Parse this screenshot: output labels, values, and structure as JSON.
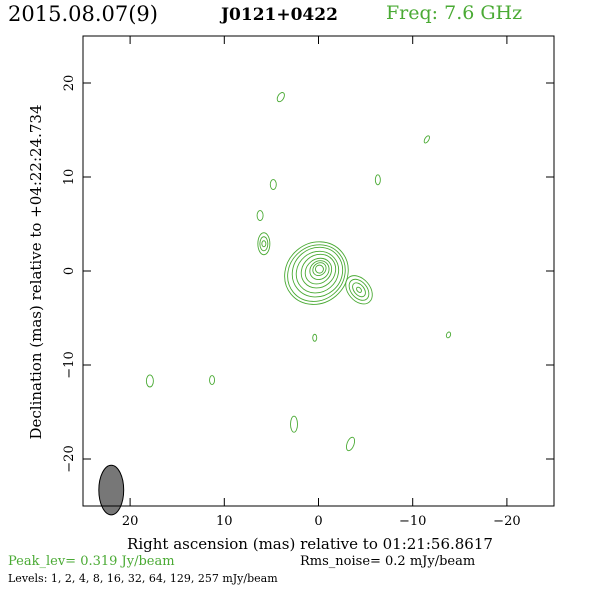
{
  "header": {
    "date": "2015.08.07(9)",
    "source": "J0121+0422",
    "freq": "Freq: 7.6 GHz"
  },
  "footer": {
    "peak": "Peak_lev=  0.319 Jy/beam",
    "rms": "Rms_noise=   0.2 mJy/beam",
    "levels": "Levels:   1,   2,   4,   8,  16,  32,  64, 129, 257 mJy/beam"
  },
  "colors": {
    "contour": "#4aaa34",
    "beam": "#777777",
    "frame": "#000000"
  },
  "chart_data": {
    "type": "contour",
    "title": "",
    "xlabel": "Right ascension (mas) relative to 01:21:56.8617",
    "ylabel": "Declination (mas) relative to +04:22:24.734",
    "xlim": [
      25,
      -25
    ],
    "ylim": [
      -25,
      25
    ],
    "x_ticks": [
      20,
      10,
      0,
      -10,
      -20
    ],
    "x_tick_labels": [
      "20",
      "10",
      "0",
      "−10",
      "−20"
    ],
    "y_ticks": [
      20,
      10,
      0,
      -10,
      -20
    ],
    "y_tick_labels": [
      "20",
      "10",
      "0",
      "−10",
      "−20"
    ],
    "levels_mJy": [
      1,
      2,
      4,
      8,
      16,
      32,
      64,
      129,
      257
    ],
    "core": {
      "x": -0.1,
      "y": 0.2,
      "nested_contours": 9
    },
    "components": [
      {
        "x": -4.3,
        "y": -2.0
      },
      {
        "x": 5.8,
        "y": 2.9
      },
      {
        "x": 6.2,
        "y": 5.9
      },
      {
        "x": 4.8,
        "y": 9.2
      },
      {
        "x": 4.0,
        "y": 18.5
      },
      {
        "x": -6.3,
        "y": 9.7
      },
      {
        "x": -11.5,
        "y": 14.0
      },
      {
        "x": 0.4,
        "y": -7.1
      },
      {
        "x": -13.8,
        "y": -6.8
      },
      {
        "x": 17.9,
        "y": -11.7
      },
      {
        "x": 11.3,
        "y": -11.6
      },
      {
        "x": 2.6,
        "y": -16.3
      },
      {
        "x": -3.4,
        "y": -18.4
      }
    ],
    "beam": {
      "x": 22.0,
      "y": -23.3,
      "bmaj_mas": 2.4,
      "bmin_mas": 1.2,
      "pa_deg": 0
    },
    "grid": false
  }
}
